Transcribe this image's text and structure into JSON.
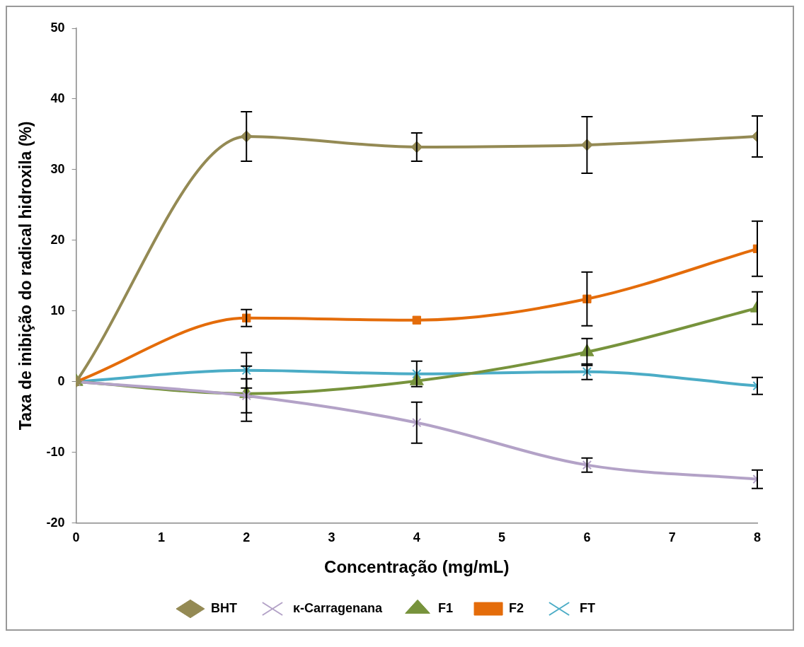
{
  "chart_data": {
    "type": "line",
    "xlabel": "Concentração (mg/mL)",
    "ylabel": "Taxa de inibição do radical hidroxila (%)",
    "x": [
      0,
      2,
      4,
      6,
      8
    ],
    "xlim": [
      0,
      8
    ],
    "xticks": [
      0,
      1,
      2,
      3,
      4,
      5,
      6,
      7,
      8
    ],
    "ylim": [
      -20,
      50
    ],
    "yticks": [
      -20,
      -10,
      0,
      10,
      20,
      30,
      40,
      50
    ],
    "grid": false,
    "legend": "bottom",
    "series": [
      {
        "name": "BHT",
        "color": "#948a54",
        "marker": "diamond",
        "values": [
          0,
          34.7,
          33.2,
          33.5,
          34.7
        ],
        "errors": [
          null,
          3.5,
          2.0,
          4.0,
          2.9
        ]
      },
      {
        "name": "κ-Carragenana",
        "color": "#b3a2c7",
        "marker": "cross",
        "values": [
          0,
          -2.0,
          -5.8,
          -11.8,
          -13.8
        ],
        "errors": [
          null,
          2.4,
          2.9,
          1.0,
          1.3
        ]
      },
      {
        "name": "F1",
        "color": "#77933c",
        "marker": "triangle",
        "values": [
          0,
          -1.7,
          0.1,
          4.2,
          10.4
        ],
        "errors": [
          null,
          3.9,
          null,
          1.9,
          2.3
        ]
      },
      {
        "name": "F2",
        "color": "#e46c0a",
        "marker": "square",
        "values": [
          0,
          9.0,
          8.7,
          11.7,
          18.8
        ],
        "errors": [
          null,
          1.2,
          null,
          3.8,
          3.9
        ]
      },
      {
        "name": "FT",
        "color": "#4bacc6",
        "marker": "cross",
        "values": [
          0,
          1.6,
          1.1,
          1.4,
          -0.6
        ],
        "errors": [
          null,
          2.5,
          1.8,
          1.1,
          1.2
        ]
      }
    ]
  }
}
